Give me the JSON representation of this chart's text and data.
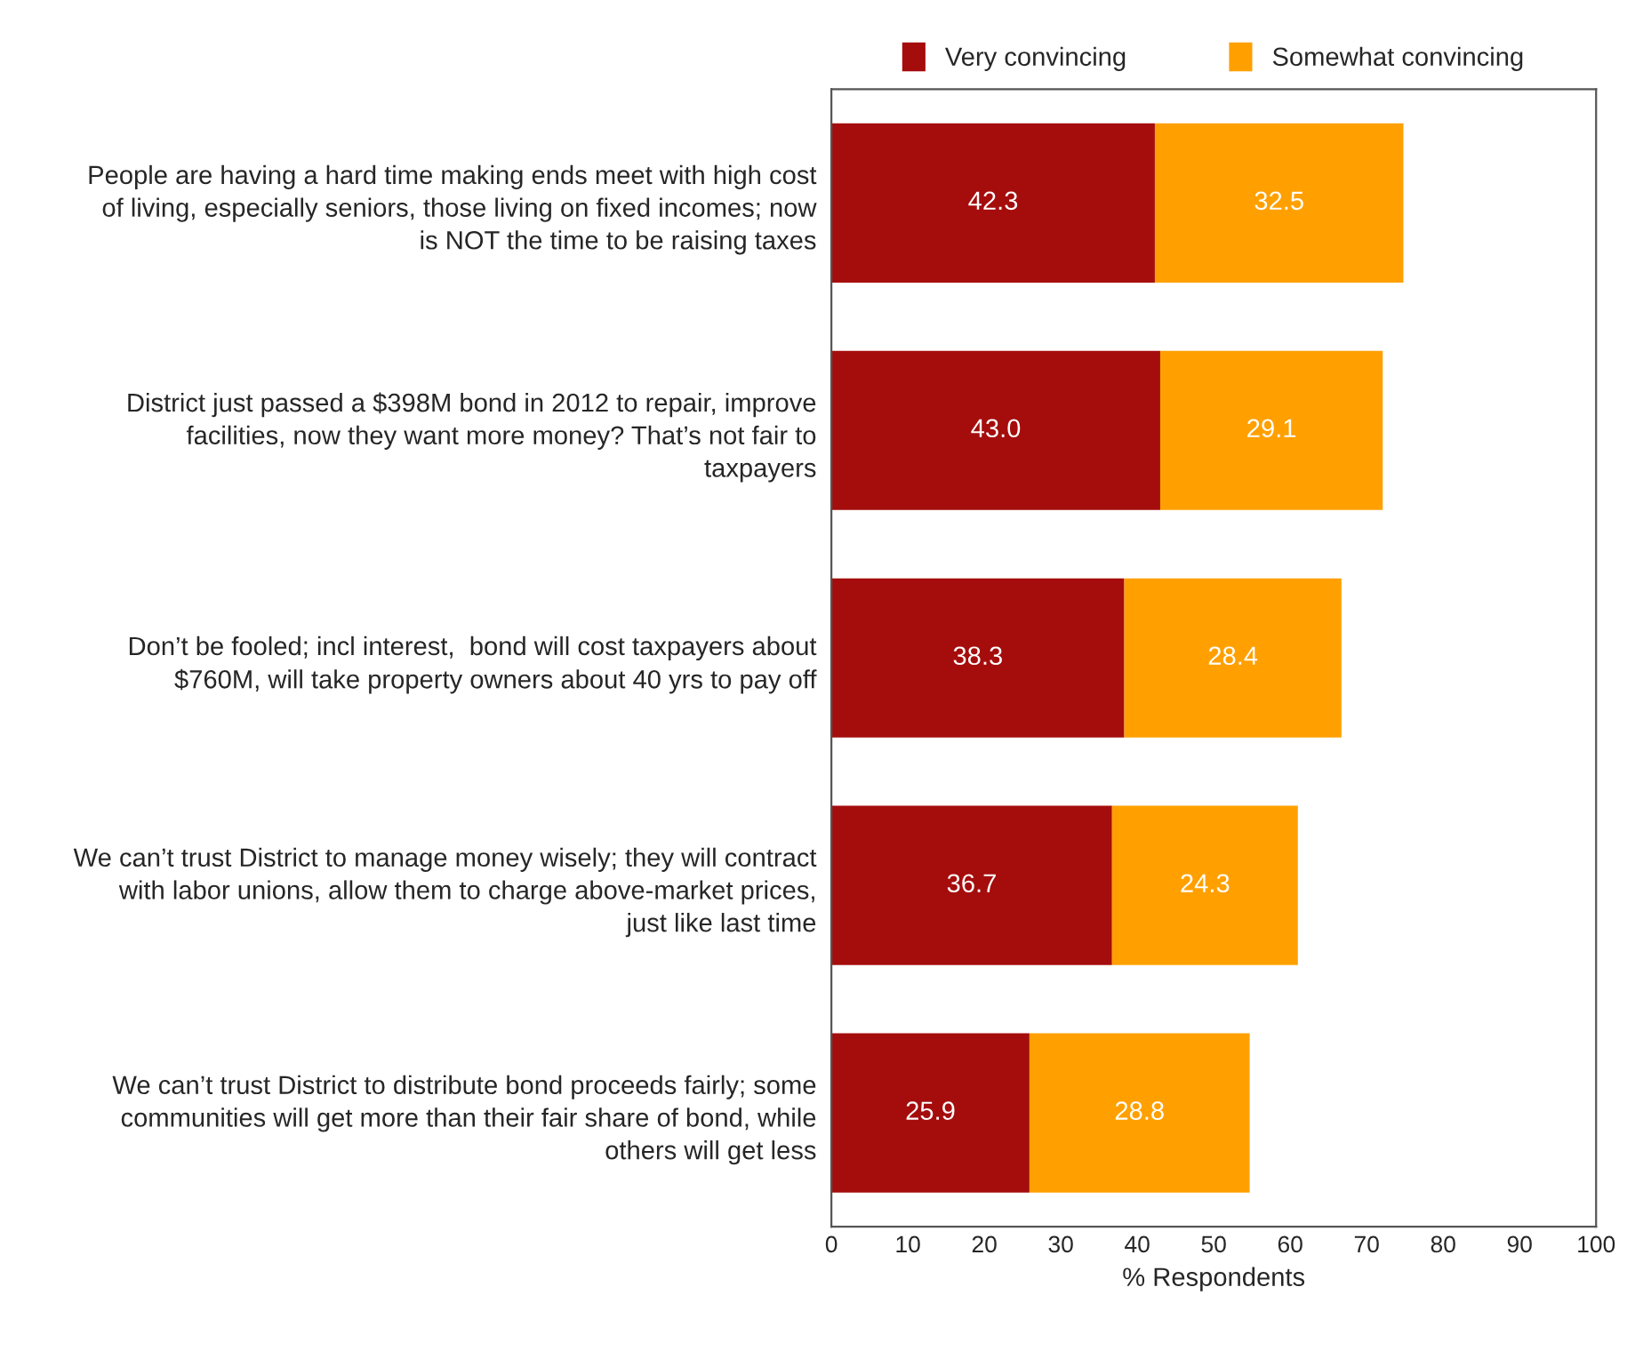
{
  "chart_data": {
    "type": "bar",
    "orientation": "horizontal",
    "stacked": true,
    "xlabel": "% Respondents",
    "categories": [
      "People are having a hard time making ends meet with high cost\nof living, especially seniors, those living on fixed incomes; now\nis NOT the time to be raising taxes",
      "District just passed a $398M bond in 2012 to repair, improve\nfacilities, now they want more money? That’s not fair to\ntaxpayers",
      "Don’t be fooled; incl interest,  bond will cost taxpayers about\n$760M, will take property owners about 40 yrs to pay off",
      "We can’t trust District to manage money wisely; they will contract\nwith labor unions, allow them to charge above-market prices,\njust like last time",
      "We can’t trust District to distribute bond proceeds fairly; some\ncommunities will get more than their fair share of bond, while\nothers will get less"
    ],
    "series": [
      {
        "name": "Very convincing",
        "color": "#a50d0d",
        "values": [
          42.3,
          43.0,
          38.3,
          36.7,
          25.9
        ],
        "value_labels": [
          "42.3",
          "43.0",
          "38.3",
          "36.7",
          "25.9"
        ]
      },
      {
        "name": "Somewhat convincing",
        "color": "#ffa000",
        "values": [
          32.5,
          29.1,
          28.4,
          24.3,
          28.8
        ],
        "value_labels": [
          "32.5",
          "29.1",
          "28.4",
          "24.3",
          "28.8"
        ]
      }
    ],
    "xlim": [
      0,
      100
    ],
    "xticks": [
      0,
      10,
      20,
      30,
      40,
      50,
      60,
      70,
      80,
      90,
      100
    ],
    "legend": "top",
    "grid": false
  }
}
